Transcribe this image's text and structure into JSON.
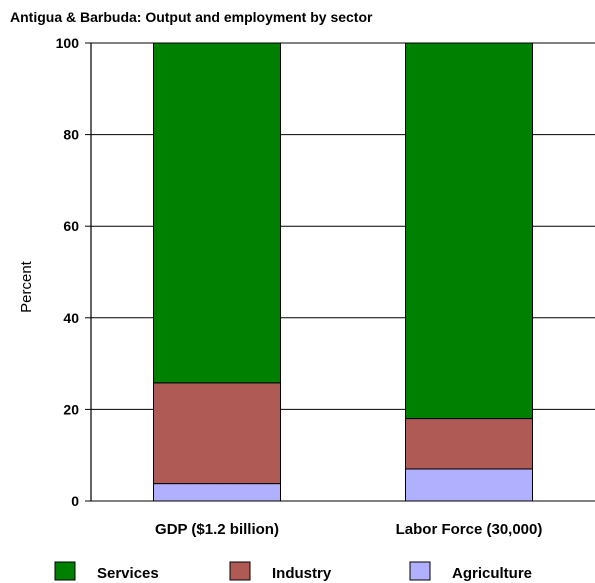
{
  "chart_data": {
    "type": "bar",
    "stacked": true,
    "title": "Antigua & Barbuda: Output and employment by sector",
    "ylabel": "Percent",
    "ylim": [
      0,
      100
    ],
    "yticks": [
      0,
      20,
      40,
      60,
      80,
      100
    ],
    "grid": true,
    "legend_position": "bottom",
    "categories": [
      "GDP ($1.2 billion)",
      "Labor Force (30,000)"
    ],
    "series": [
      {
        "name": "Agriculture",
        "color": "#b0b0ff",
        "values": [
          3.8,
          7
        ]
      },
      {
        "name": "Industry",
        "color": "#b05a55",
        "values": [
          22,
          11
        ]
      },
      {
        "name": "Services",
        "color": "#008000",
        "values": [
          74.2,
          82
        ]
      }
    ],
    "legend_order": [
      "Services",
      "Industry",
      "Agriculture"
    ]
  }
}
